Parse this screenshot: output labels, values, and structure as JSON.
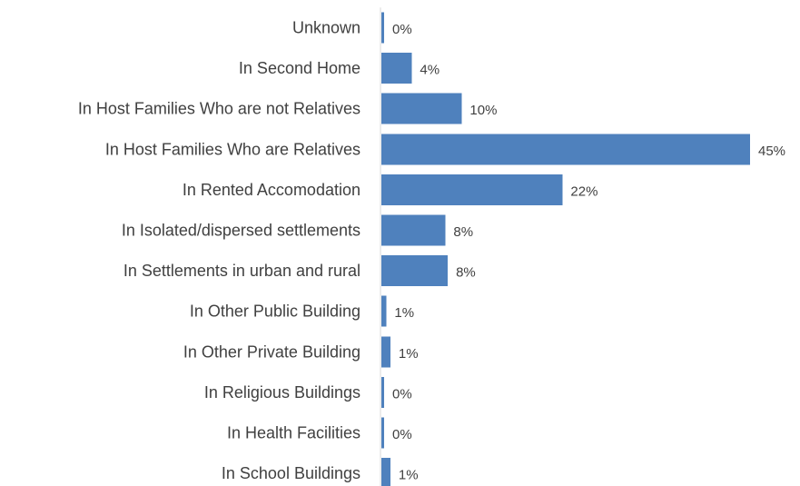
{
  "chart_data": {
    "type": "bar",
    "orientation": "horizontal",
    "categories": [
      "Unknown",
      "In Second Home",
      "In Host Families Who are not Relatives",
      "In Host Families Who are Relatives",
      "In Rented Accomodation",
      "In Isolated/dispersed settlements",
      "In Settlements in urban and rural",
      "In Other Public Building",
      "In Other Private Building",
      "In Religious Buildings",
      "In Health Facilities",
      "In School Buildings"
    ],
    "values": [
      0.2,
      3.7,
      9.8,
      45,
      22.1,
      7.8,
      8.1,
      0.6,
      1.1,
      0.2,
      0.2,
      1.1
    ],
    "data_labels": [
      "0%",
      "4%",
      "10%",
      "45%",
      "22%",
      "8%",
      "8%",
      "1%",
      "1%",
      "0%",
      "0%",
      "1%"
    ],
    "title": "",
    "xlabel": "",
    "ylabel": "",
    "xlim": [
      0,
      45
    ],
    "grid": false,
    "legend": "none",
    "bar_color": "#4F81BD",
    "text_color": "#404040",
    "axis_color": "#D9D9D9"
  }
}
